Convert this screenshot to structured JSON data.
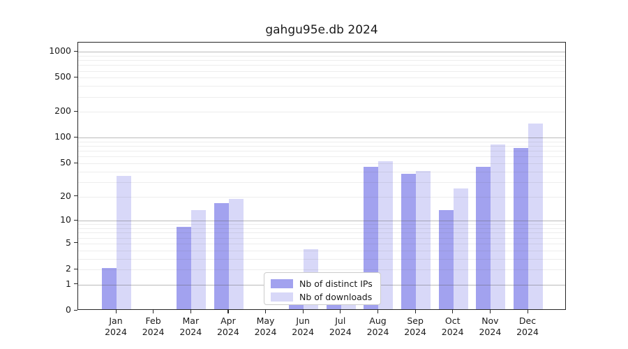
{
  "title": "gahgu95e.db 2024",
  "chart_data": {
    "type": "bar",
    "title": "gahgu95e.db 2024",
    "categories": [
      "Jan",
      "Feb",
      "Mar",
      "Apr",
      "May",
      "Jun",
      "Jul",
      "Aug",
      "Sep",
      "Oct",
      "Nov",
      "Dec"
    ],
    "category_year": "2024",
    "series": [
      {
        "name": "Nb of distinct IPs",
        "color": "#a2a2ef",
        "values": [
          2,
          0,
          8,
          16,
          0,
          1,
          1,
          44,
          36,
          13,
          44,
          73
        ]
      },
      {
        "name": "Nb of downloads",
        "color": "#d8d8f8",
        "values": [
          34,
          0,
          13,
          18,
          0,
          4,
          1,
          51,
          39,
          24,
          80,
          140
        ]
      }
    ],
    "y_tick_labels": [
      "1000",
      "500",
      "200",
      "100",
      "50",
      "20",
      "10",
      "5",
      "2",
      "1",
      "0"
    ],
    "y_tick_values": [
      1000,
      500,
      200,
      100,
      50,
      20,
      10,
      5,
      2,
      1,
      0
    ],
    "y_scale": "log1p",
    "ylim": [
      0,
      1000
    ],
    "grid": true,
    "grid_major_values": [
      1,
      10,
      100,
      1000
    ],
    "grid_minor_values": [
      2,
      3,
      4,
      5,
      6,
      7,
      8,
      9,
      20,
      30,
      40,
      50,
      60,
      70,
      80,
      90,
      200,
      300,
      400,
      500,
      600,
      700,
      800,
      900
    ],
    "legend_position": "inside-bottom-center",
    "xlabel": "",
    "ylabel": ""
  },
  "legend": {
    "items": [
      {
        "label": "Nb of distinct IPs",
        "color": "#a2a2ef"
      },
      {
        "label": "Nb of downloads",
        "color": "#d8d8f8"
      }
    ]
  },
  "colors": {
    "distinct_ips_bar": "#a2a2ef",
    "downloads_bar": "#d8d8f8",
    "axis": "#262626",
    "grid_major": "#b3b3b3",
    "grid_minor": "#e6e6e6",
    "text": "#1a1a1a",
    "legend_border": "#cccccc",
    "background": "#ffffff"
  }
}
